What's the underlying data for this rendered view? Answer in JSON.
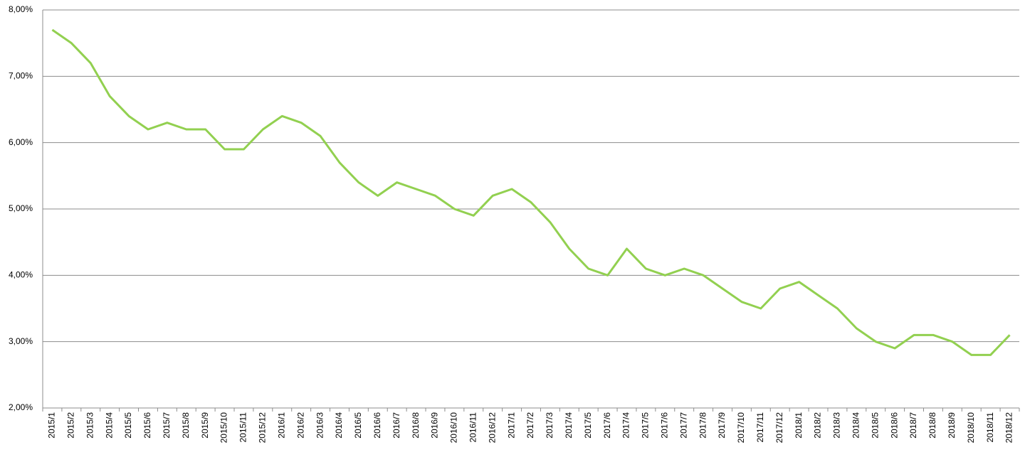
{
  "chart_data": {
    "type": "line",
    "categories": [
      "2015/1",
      "2015/2",
      "2015/3",
      "2015/4",
      "2015/5",
      "2015/6",
      "2015/7",
      "2015/8",
      "2015/9",
      "2015/10",
      "2015/11",
      "2015/12",
      "2016/1",
      "2016/2",
      "2016/3",
      "2016/4",
      "2016/5",
      "2016/6",
      "2016/7",
      "2016/8",
      "2016/9",
      "2016/10",
      "2016/11",
      "2016/12",
      "2017/1",
      "2017/2",
      "2017/3",
      "2017/4",
      "2017/5",
      "2017/6",
      "2017/4",
      "2017/5",
      "2017/6",
      "2017/7",
      "2017/8",
      "2017/9",
      "2017/10",
      "2017/11",
      "2017/12",
      "2018/1",
      "2018/2",
      "2018/3",
      "2018/4",
      "2018/5",
      "2018/6",
      "2018/7",
      "2018/8",
      "2018/9",
      "2018/10",
      "2018/11",
      "2018/12"
    ],
    "values": [
      7.7,
      7.5,
      7.2,
      6.7,
      6.4,
      6.2,
      6.3,
      6.2,
      6.2,
      5.9,
      5.9,
      6.2,
      6.4,
      6.3,
      6.1,
      5.7,
      5.4,
      5.2,
      5.4,
      5.3,
      5.2,
      5.0,
      4.9,
      5.2,
      5.3,
      5.1,
      4.8,
      4.4,
      4.1,
      4.0,
      4.4,
      4.1,
      4.0,
      4.1,
      4.0,
      3.8,
      3.6,
      3.5,
      3.8,
      3.9,
      3.7,
      3.5,
      3.2,
      3.0,
      2.9,
      3.1,
      3.1,
      3.0,
      2.8,
      2.8,
      3.1
    ],
    "color": "#92d050",
    "ylim": [
      2,
      8
    ],
    "yticks": [
      {
        "value": 2,
        "label": "2,00%"
      },
      {
        "value": 3,
        "label": "3,00%"
      },
      {
        "value": 4,
        "label": "4,00%"
      },
      {
        "value": 5,
        "label": "5,00%"
      },
      {
        "value": 6,
        "label": "6,00%"
      },
      {
        "value": 7,
        "label": "7,00%"
      },
      {
        "value": 8,
        "label": "8,00%"
      }
    ],
    "grid": true
  }
}
